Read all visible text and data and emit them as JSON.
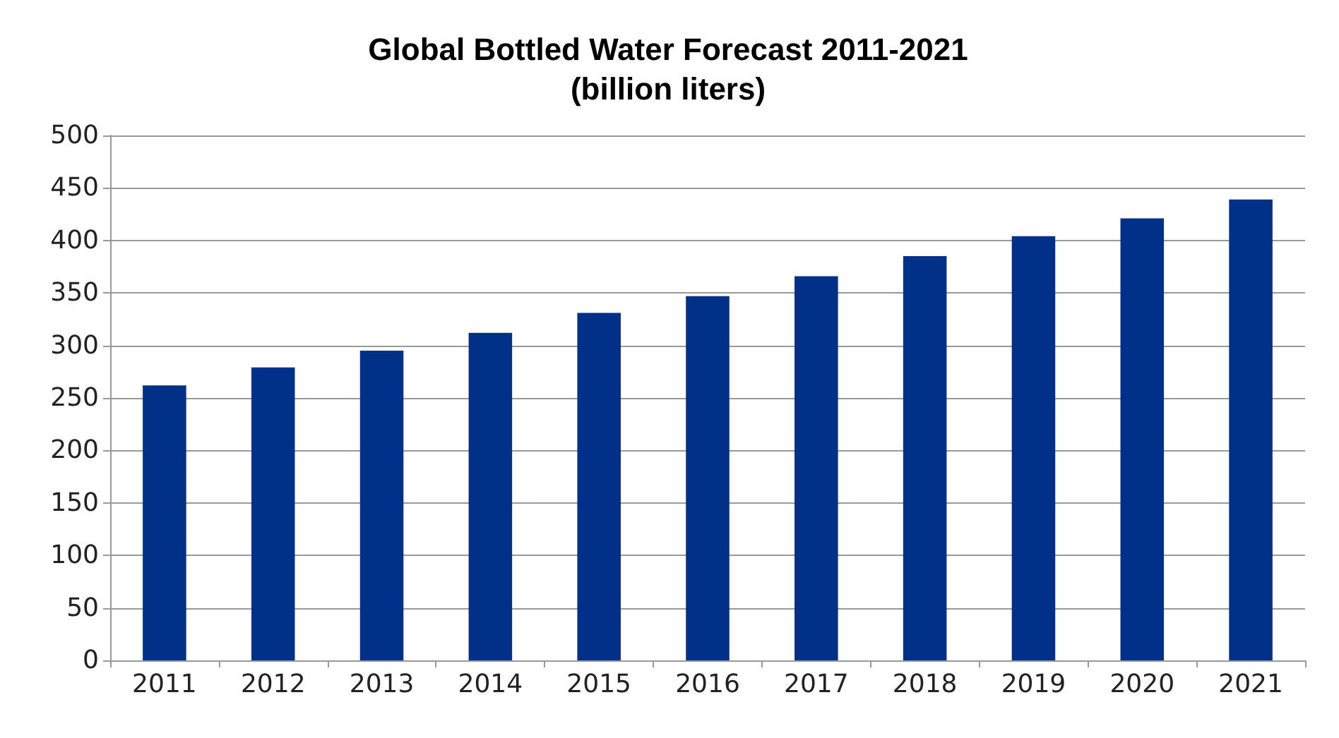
{
  "chart_data": {
    "type": "bar",
    "title": "Global Bottled Water Forecast 2011-2021\n(billion liters)",
    "categories": [
      "2011",
      "2012",
      "2013",
      "2014",
      "2015",
      "2016",
      "2017",
      "2018",
      "2019",
      "2020",
      "2021"
    ],
    "values": [
      262,
      279,
      295,
      312,
      331,
      347,
      366,
      385,
      404,
      421,
      439
    ],
    "color": "#003087",
    "ylim": [
      0,
      500
    ],
    "yticks": [
      0,
      50,
      100,
      150,
      200,
      250,
      300,
      350,
      400,
      450,
      500
    ],
    "grid": "y"
  }
}
